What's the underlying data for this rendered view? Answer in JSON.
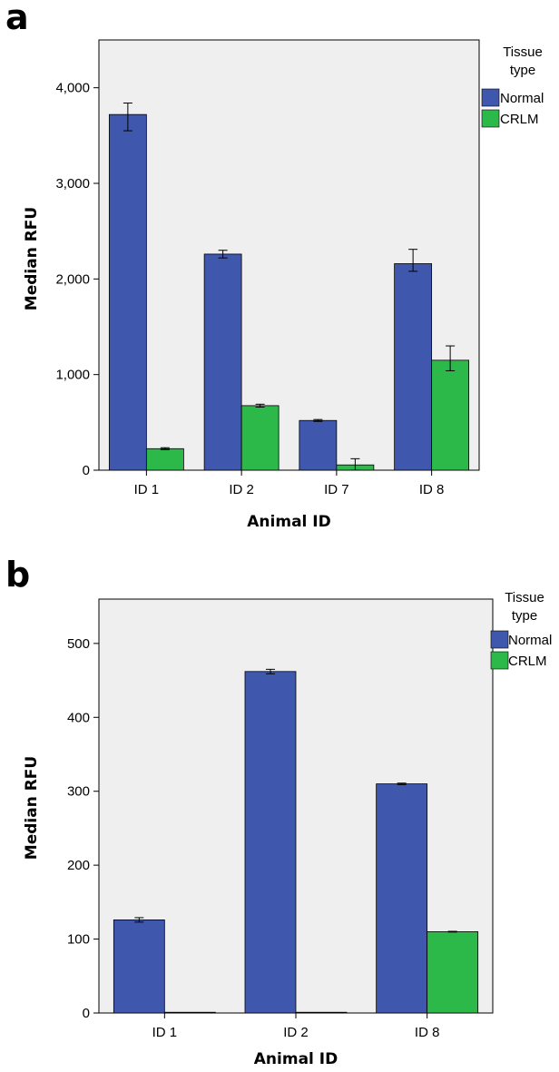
{
  "colors": {
    "normal": "#3f57ad",
    "crlm": "#2db84a",
    "plot_bg": "#efefef",
    "axis": "#000000"
  },
  "chart_data": [
    {
      "panel": "a",
      "type": "bar",
      "categories": [
        "ID 1",
        "ID 2",
        "ID 7",
        "ID 8"
      ],
      "series": [
        {
          "name": "Normal",
          "values": [
            3720,
            2260,
            520,
            2160
          ],
          "err_low": [
            3550,
            2220,
            510,
            2080
          ],
          "err_high": [
            3840,
            2300,
            530,
            2310
          ]
        },
        {
          "name": "CRLM",
          "values": [
            225,
            675,
            55,
            1150
          ],
          "err_low": [
            215,
            660,
            0,
            1040
          ],
          "err_high": [
            235,
            690,
            120,
            1300
          ]
        }
      ],
      "ylim": [
        0,
        4500
      ],
      "yticks": [
        0,
        1000,
        2000,
        3000,
        4000
      ],
      "ytick_labels": [
        "0",
        "1,000",
        "2,000",
        "3,000",
        "4,000"
      ],
      "xlabel": "Animal ID",
      "ylabel": "Median RFU",
      "legend_title": [
        "Tissue",
        "type"
      ],
      "legend_position": "right",
      "grid": false
    },
    {
      "panel": "b",
      "type": "bar",
      "categories": [
        "ID 1",
        "ID 2",
        "ID 8"
      ],
      "series": [
        {
          "name": "Normal",
          "values": [
            126,
            462,
            310
          ],
          "err_low": [
            123,
            459,
            309
          ],
          "err_high": [
            129,
            465,
            311
          ]
        },
        {
          "name": "CRLM",
          "values": [
            0,
            0,
            110
          ],
          "err_low": [
            0,
            0,
            109.5
          ],
          "err_high": [
            0,
            0,
            110.5
          ]
        }
      ],
      "ylim": [
        0,
        560
      ],
      "yticks": [
        0,
        100,
        200,
        300,
        400,
        500
      ],
      "ytick_labels": [
        "0",
        "100",
        "200",
        "300",
        "400",
        "500"
      ],
      "xlabel": "Animal ID",
      "ylabel": "Median RFU",
      "legend_title": [
        "Tissue",
        "type"
      ],
      "legend_position": "right",
      "grid": false
    }
  ]
}
